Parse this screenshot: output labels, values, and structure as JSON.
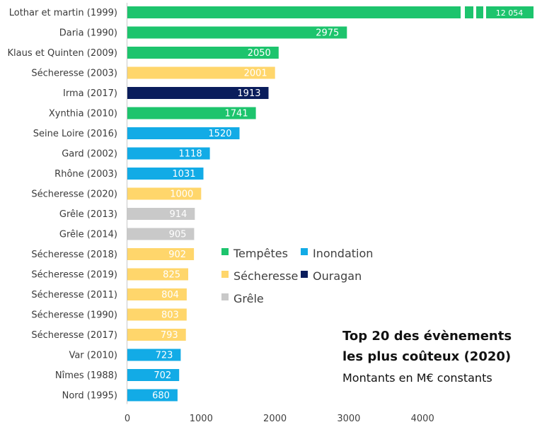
{
  "chart_data": {
    "type": "bar",
    "orientation": "horizontal",
    "title": "Top 20 des évènements",
    "title_line2": "les plus coûteux (2020)",
    "subtitle": "Montants en M€ constants",
    "xlabel": "",
    "ylabel": "",
    "xlim": [
      0,
      5500
    ],
    "xticks": [
      0,
      1000,
      2000,
      3000,
      4000
    ],
    "axis_break": true,
    "categories": [
      "Lothar et martin (1999)",
      "Daria (1990)",
      "Klaus et Quinten (2009)",
      "Sécheresse (2003)",
      "Irma (2017)",
      "Xynthia (2010)",
      "Seine Loire (2016)",
      "Gard (2002)",
      "Rhône (2003)",
      "Sécheresse (2020)",
      "Grêle (2013)",
      "Grêle (2014)",
      "Sécheresse (2018)",
      "Sécheresse (2019)",
      "Sécheresse (2011)",
      "Sécheresse (1990)",
      "Sécheresse (2017)",
      "Var (2010)",
      "Nîmes (1988)",
      "Nord (1995)"
    ],
    "values": [
      12054,
      2975,
      2050,
      2001,
      1913,
      1741,
      1520,
      1118,
      1031,
      1000,
      914,
      905,
      902,
      825,
      804,
      803,
      793,
      723,
      702,
      680
    ],
    "value_labels": [
      "12 054",
      "2975",
      "2050",
      "2001",
      "1913",
      "1741",
      "1520",
      "1118",
      "1031",
      "1000",
      "914",
      "905",
      "902",
      "825",
      "804",
      "803",
      "793",
      "723",
      "702",
      "680"
    ],
    "groups": [
      "Tempêtes",
      "Tempêtes",
      "Tempêtes",
      "Sécheresse",
      "Ouragan",
      "Tempêtes",
      "Inondation",
      "Inondation",
      "Inondation",
      "Sécheresse",
      "Grêle",
      "Grêle",
      "Sécheresse",
      "Sécheresse",
      "Sécheresse",
      "Sécheresse",
      "Sécheresse",
      "Inondation",
      "Inondation",
      "Inondation"
    ],
    "legend": [
      {
        "name": "Tempêtes",
        "color": "#1DC46D"
      },
      {
        "name": "Inondation",
        "color": "#12ABE6"
      },
      {
        "name": "Sécheresse",
        "color": "#FFD66B"
      },
      {
        "name": "Ouragan",
        "color": "#0A1D5C"
      },
      {
        "name": "Grêle",
        "color": "#C9C9C9"
      }
    ],
    "legend_position": "center-right",
    "grid": false
  }
}
